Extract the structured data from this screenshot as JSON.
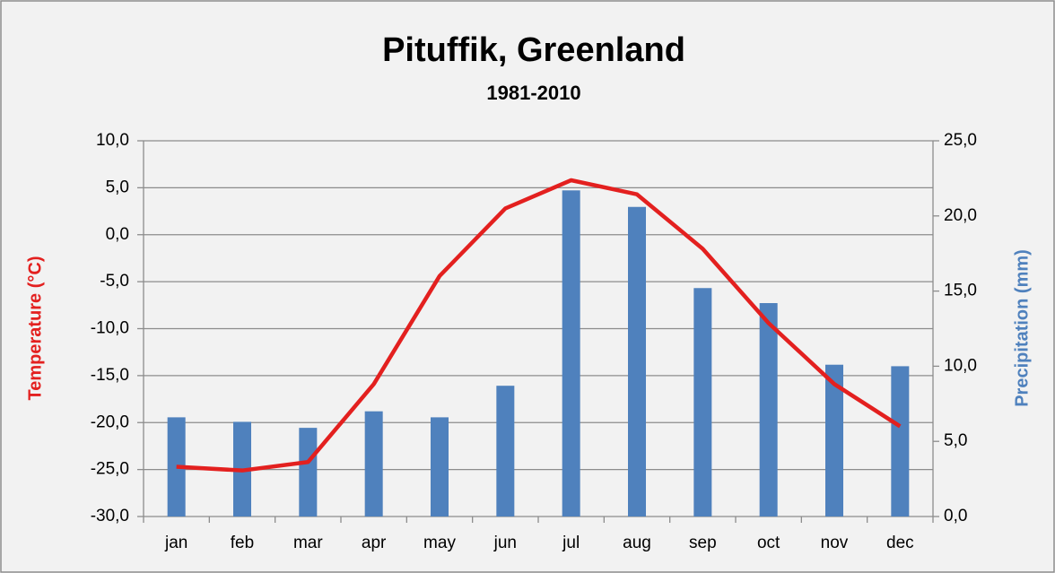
{
  "chart_data": {
    "type": "combo",
    "title": "Pituffik, Greenland",
    "subtitle": "1981-2010",
    "categories": [
      "jan",
      "feb",
      "mar",
      "apr",
      "may",
      "jun",
      "jul",
      "aug",
      "sep",
      "oct",
      "nov",
      "dec"
    ],
    "ylabel": "Temperature (°C)",
    "y2label": "Precipitation (mm)",
    "ylim": [
      -30,
      10
    ],
    "yticks": [
      {
        "value": -30,
        "label": "-30,0"
      },
      {
        "value": -25,
        "label": "-25,0"
      },
      {
        "value": -20,
        "label": "-20,0"
      },
      {
        "value": -15,
        "label": "-15,0"
      },
      {
        "value": -10,
        "label": "-10,0"
      },
      {
        "value": -5,
        "label": "-5,0"
      },
      {
        "value": 0,
        "label": "0,0"
      },
      {
        "value": 5,
        "label": "5,0"
      },
      {
        "value": 10,
        "label": "10,0"
      }
    ],
    "y2lim": [
      0,
      25
    ],
    "y2ticks": [
      {
        "value": 0,
        "label": "0,0"
      },
      {
        "value": 5,
        "label": "5,0"
      },
      {
        "value": 10,
        "label": "10,0"
      },
      {
        "value": 15,
        "label": "15,0"
      },
      {
        "value": 20,
        "label": "20,0"
      },
      {
        "value": 25,
        "label": "25,0"
      }
    ],
    "grid": true,
    "series": [
      {
        "name": "Temperature (°C)",
        "type": "line",
        "axis": "y",
        "color": "#e3201f",
        "values": [
          -24.7,
          -25.1,
          -24.2,
          -15.9,
          -4.4,
          2.8,
          5.8,
          4.3,
          -1.5,
          -9.4,
          -15.9,
          -20.4
        ]
      },
      {
        "name": "Precipitation (mm)",
        "type": "bar",
        "axis": "y2",
        "color": "#4f81bd",
        "values": [
          6.6,
          6.3,
          5.9,
          7.0,
          6.6,
          8.7,
          21.7,
          20.6,
          15.2,
          14.2,
          10.1,
          10.0
        ]
      }
    ]
  }
}
